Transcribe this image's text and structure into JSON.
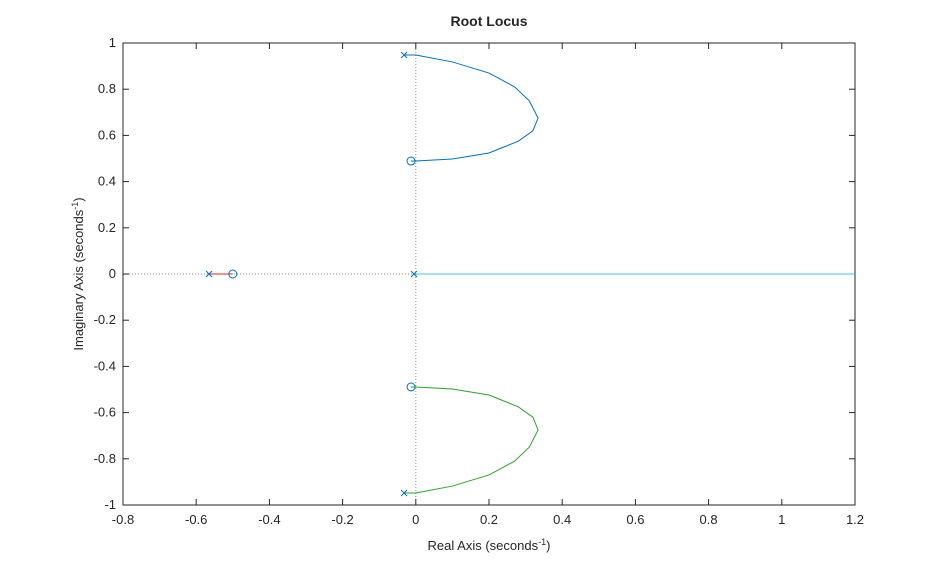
{
  "chart_data": {
    "type": "line",
    "title": "Root Locus",
    "xlabel": [
      "Real  Axis  (seconds",
      "-1",
      ")"
    ],
    "ylabel": [
      "Imaginary  Axis  (seconds",
      "-1",
      ")"
    ],
    "xlim": [
      -0.8,
      1.2
    ],
    "ylim": [
      -1,
      1
    ],
    "xticks": [
      -0.8,
      -0.6,
      -0.4,
      -0.2,
      0,
      0.2,
      0.4,
      0.6,
      0.8,
      1,
      1.2
    ],
    "yticks": [
      -1,
      -0.8,
      -0.6,
      -0.4,
      -0.2,
      0,
      0.2,
      0.4,
      0.6,
      0.8,
      1
    ],
    "zero_lines": true,
    "series": [
      {
        "color": "#0072bd",
        "x": [
          -0.032,
          0,
          0.1,
          0.2,
          0.27,
          0.31,
          0.334,
          0.32,
          0.28,
          0.2,
          0.1,
          0,
          -0.013
        ],
        "values": [
          0.948,
          0.948,
          0.918,
          0.87,
          0.81,
          0.75,
          0.675,
          0.62,
          0.575,
          0.524,
          0.498,
          0.489,
          0.489
        ]
      },
      {
        "color": "#2ca02c",
        "x": [
          -0.032,
          0,
          0.1,
          0.2,
          0.27,
          0.31,
          0.334,
          0.32,
          0.28,
          0.2,
          0.1,
          0,
          -0.013
        ],
        "values": [
          -0.948,
          -0.948,
          -0.918,
          -0.87,
          -0.81,
          -0.75,
          -0.675,
          -0.62,
          -0.575,
          -0.524,
          -0.498,
          -0.489,
          -0.489
        ]
      },
      {
        "color": "#d62728",
        "x": [
          -0.565,
          -0.5
        ],
        "values": [
          0,
          0
        ]
      },
      {
        "color": "#4dbeee",
        "x": [
          -0.005,
          1.2
        ],
        "values": [
          0,
          0
        ]
      }
    ],
    "marker_color": "#0072bd",
    "poles": {
      "x": [
        -0.032,
        -0.032,
        -0.565,
        -0.005
      ],
      "y": [
        0.948,
        -0.948,
        0,
        0
      ]
    },
    "zeros": {
      "x": [
        -0.013,
        -0.013,
        -0.5
      ],
      "y": [
        0.489,
        -0.489,
        0
      ]
    }
  }
}
